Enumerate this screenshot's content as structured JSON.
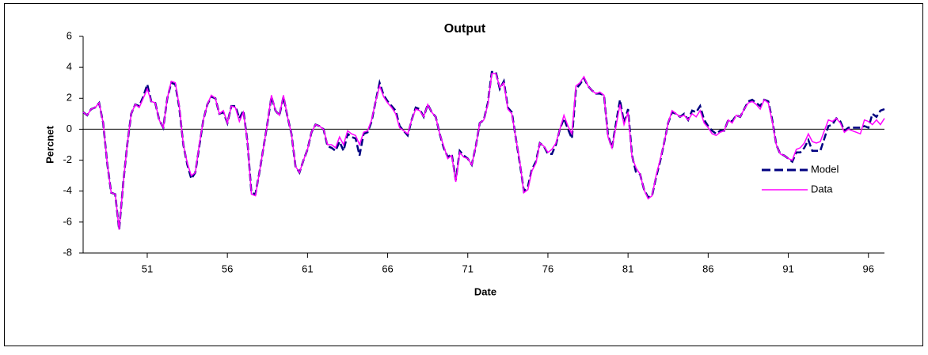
{
  "chart_data": {
    "type": "line",
    "title": "Output",
    "x_label": "Date",
    "y_label": "Percnet",
    "x": [
      47,
      47.25,
      47.5,
      47.75,
      48,
      48.25,
      48.5,
      48.75,
      49,
      49.25,
      49.5,
      49.75,
      50,
      50.25,
      50.5,
      50.75,
      51,
      51.25,
      51.5,
      51.75,
      52,
      52.25,
      52.5,
      52.75,
      53,
      53.25,
      53.5,
      53.75,
      54,
      54.25,
      54.5,
      54.75,
      55,
      55.25,
      55.5,
      55.75,
      56,
      56.25,
      56.5,
      56.75,
      57,
      57.25,
      57.5,
      57.75,
      58,
      58.25,
      58.5,
      58.75,
      59,
      59.25,
      59.5,
      59.75,
      60,
      60.25,
      60.5,
      60.75,
      61,
      61.25,
      61.5,
      61.75,
      62,
      62.25,
      62.5,
      62.75,
      63,
      63.25,
      63.5,
      63.75,
      64,
      64.25,
      64.5,
      64.75,
      65,
      65.25,
      65.5,
      65.75,
      66,
      66.25,
      66.5,
      66.75,
      67,
      67.25,
      67.5,
      67.75,
      68,
      68.25,
      68.5,
      68.75,
      69,
      69.25,
      69.5,
      69.75,
      70,
      70.25,
      70.5,
      70.75,
      71,
      71.25,
      71.5,
      71.75,
      72,
      72.25,
      72.5,
      72.75,
      73,
      73.25,
      73.5,
      73.75,
      74,
      74.25,
      74.5,
      74.75,
      75,
      75.25,
      75.5,
      75.75,
      76,
      76.25,
      76.5,
      76.75,
      77,
      77.25,
      77.5,
      77.75,
      78,
      78.25,
      78.5,
      78.75,
      79,
      79.25,
      79.5,
      79.75,
      80,
      80.25,
      80.5,
      80.75,
      81,
      81.25,
      81.5,
      81.75,
      82,
      82.25,
      82.5,
      82.75,
      83,
      83.25,
      83.5,
      83.75,
      84,
      84.25,
      84.5,
      84.75,
      85,
      85.25,
      85.5,
      85.75,
      86,
      86.25,
      86.5,
      86.75,
      87,
      87.25,
      87.5,
      87.75,
      88,
      88.25,
      88.5,
      88.75,
      89,
      89.25,
      89.5,
      89.75,
      90,
      90.25,
      90.5,
      90.75,
      91,
      91.25,
      91.5,
      91.75,
      92,
      92.25,
      92.5,
      92.75,
      93,
      93.25,
      93.5,
      93.75,
      94,
      94.25,
      94.5,
      94.75,
      95,
      95.25,
      95.5,
      95.75,
      96,
      96.25,
      96.5,
      96.75,
      97
    ],
    "series": [
      {
        "name": "Model",
        "color": "#000080",
        "dashed": true,
        "values": [
          1.1,
          0.9,
          1.3,
          1.4,
          1.7,
          0.4,
          -2.2,
          -4.1,
          -4.2,
          -6.5,
          -3.5,
          -1.0,
          1.0,
          1.6,
          1.5,
          2.1,
          2.9,
          1.8,
          1.7,
          0.6,
          0.1,
          2.0,
          3.0,
          2.9,
          1.4,
          -1.0,
          -2.3,
          -3.2,
          -2.8,
          -1.1,
          0.6,
          1.6,
          2.1,
          2.0,
          1.0,
          1.1,
          0.4,
          1.5,
          1.5,
          0.7,
          1.2,
          -0.8,
          -4.1,
          -4.2,
          -2.8,
          -1.2,
          0.4,
          2.1,
          1.2,
          0.9,
          2.1,
          0.8,
          -0.3,
          -2.4,
          -2.8,
          -2.0,
          -1.3,
          -0.2,
          0.3,
          0.2,
          0.0,
          -1.1,
          -1.2,
          -1.4,
          -0.8,
          -1.4,
          -0.3,
          -0.5,
          -0.6,
          -1.7,
          -0.3,
          -0.2,
          0.5,
          1.8,
          3.0,
          2.2,
          1.8,
          1.5,
          1.2,
          0.2,
          -0.1,
          -0.4,
          0.6,
          1.4,
          1.3,
          0.8,
          1.6,
          1.1,
          0.8,
          -0.3,
          -1.2,
          -1.8,
          -1.6,
          -3.3,
          -1.4,
          -1.7,
          -1.9,
          -2.3,
          -1.1,
          0.4,
          0.6,
          1.7,
          3.7,
          3.7,
          2.6,
          3.1,
          1.4,
          1.1,
          -0.6,
          -2.2,
          -4.0,
          -3.7,
          -2.6,
          -2.1,
          -0.9,
          -1.1,
          -1.6,
          -1.6,
          -1.0,
          0.0,
          0.7,
          0.0,
          -0.6,
          2.6,
          2.9,
          3.3,
          2.8,
          2.5,
          2.3,
          2.3,
          2.2,
          -0.4,
          -1.2,
          0.4,
          1.9,
          0.4,
          1.3,
          -1.7,
          -2.8,
          -2.9,
          -3.9,
          -4.4,
          -4.3,
          -3.1,
          -2.1,
          -0.9,
          0.4,
          1.1,
          1.0,
          0.8,
          1.0,
          0.6,
          1.2,
          1.1,
          1.5,
          0.6,
          0.2,
          -0.1,
          -0.3,
          -0.1,
          -0.1,
          0.6,
          0.5,
          0.9,
          0.8,
          1.3,
          1.8,
          1.9,
          1.7,
          1.5,
          1.9,
          1.8,
          0.6,
          -1.0,
          -1.6,
          -1.7,
          -1.9,
          -2.1,
          -1.5,
          -1.5,
          -1.2,
          -0.7,
          -1.4,
          -1.4,
          -1.4,
          -0.6,
          0.2,
          0.3,
          0.7,
          0.5,
          -0.1,
          0.1,
          0.1,
          0.1,
          0.1,
          0.2,
          0.1,
          1.0,
          0.8,
          1.2,
          1.3
        ]
      },
      {
        "name": "Data",
        "color": "#ff00ff",
        "dashed": false,
        "values": [
          1.1,
          0.9,
          1.3,
          1.4,
          1.7,
          0.4,
          -2.2,
          -4.1,
          -4.2,
          -6.5,
          -3.5,
          -1.0,
          1.0,
          1.6,
          1.4,
          2.0,
          2.6,
          1.8,
          1.7,
          0.6,
          0.1,
          2.0,
          3.1,
          3.0,
          1.5,
          -1.0,
          -2.2,
          -3.0,
          -2.8,
          -1.0,
          0.6,
          1.6,
          2.2,
          2.0,
          1.0,
          1.2,
          0.4,
          1.5,
          1.4,
          0.5,
          1.1,
          -0.8,
          -4.2,
          -4.3,
          -2.8,
          -1.2,
          0.4,
          2.2,
          1.2,
          0.9,
          2.2,
          0.8,
          -0.3,
          -2.4,
          -2.8,
          -2.0,
          -1.3,
          -0.2,
          0.3,
          0.2,
          0.0,
          -1.0,
          -1.0,
          -1.2,
          -0.5,
          -1.0,
          -0.1,
          -0.3,
          -0.4,
          -1.0,
          -0.2,
          -0.1,
          0.6,
          1.8,
          2.8,
          2.1,
          1.7,
          1.4,
          1.0,
          0.1,
          -0.1,
          -0.3,
          0.6,
          1.3,
          1.2,
          0.8,
          1.6,
          1.1,
          0.8,
          -0.3,
          -1.1,
          -1.9,
          -1.7,
          -3.4,
          -1.5,
          -1.8,
          -1.9,
          -2.3,
          -1.1,
          0.4,
          0.6,
          1.6,
          3.6,
          3.6,
          2.7,
          3.0,
          1.3,
          1.0,
          -0.6,
          -2.1,
          -4.1,
          -3.9,
          -2.7,
          -2.2,
          -0.9,
          -1.1,
          -1.5,
          -1.3,
          -0.9,
          0.0,
          0.9,
          0.2,
          -0.3,
          2.8,
          3.0,
          3.4,
          2.8,
          2.5,
          2.3,
          2.4,
          2.2,
          -0.5,
          -1.2,
          0.2,
          1.6,
          0.3,
          1.1,
          -1.8,
          -2.5,
          -2.9,
          -3.9,
          -4.5,
          -4.3,
          -3.0,
          -2.0,
          -0.9,
          0.4,
          1.2,
          1.0,
          0.8,
          0.9,
          0.6,
          1.0,
          0.8,
          1.2,
          0.4,
          0.1,
          -0.3,
          -0.4,
          -0.2,
          -0.1,
          0.6,
          0.4,
          0.9,
          0.8,
          1.3,
          1.7,
          1.8,
          1.6,
          1.3,
          1.9,
          1.7,
          0.5,
          -1.0,
          -1.6,
          -1.7,
          -1.9,
          -2.0,
          -1.3,
          -1.2,
          -0.9,
          -0.3,
          -0.8,
          -0.9,
          -0.8,
          -0.1,
          0.6,
          0.5,
          0.7,
          0.4,
          -0.2,
          0.0,
          -0.1,
          -0.2,
          -0.3,
          0.6,
          0.5,
          0.3,
          0.6,
          0.3,
          0.7
        ]
      }
    ],
    "xlim": [
      47,
      97
    ],
    "xticks": [
      51,
      56,
      61,
      66,
      71,
      76,
      81,
      86,
      91,
      96
    ],
    "ylim": [
      -8,
      6
    ],
    "yticks": [
      -8,
      -6,
      -4,
      -2,
      0,
      2,
      4,
      6
    ],
    "zero_line": true,
    "legend": "right"
  }
}
